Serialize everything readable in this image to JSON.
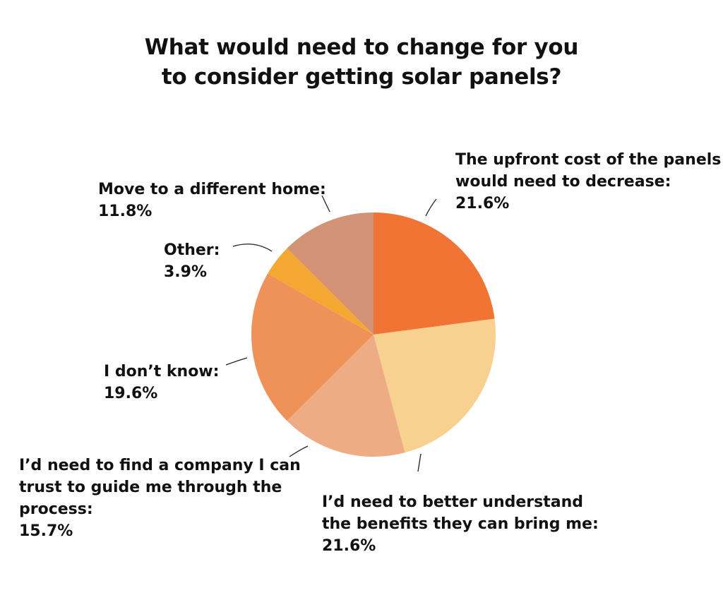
{
  "chart_data": {
    "type": "pie",
    "title_lines": [
      "What would need to change for you",
      "to consider getting solar panels?"
    ],
    "slices": [
      {
        "label_lines": [
          "The upfront cost of the panels",
          "would need to decrease:"
        ],
        "value_label": "21.6%",
        "value": 21.6,
        "color": "#F07535"
      },
      {
        "label_lines": [
          "I’d need to better understand",
          "the benefits they can bring me:"
        ],
        "value_label": "21.6%",
        "value": 21.6,
        "color": "#F8D190"
      },
      {
        "label_lines": [
          "I’d need to find a company I can",
          "trust to guide me through the",
          "process:"
        ],
        "value_label": "15.7%",
        "value": 15.7,
        "color": "#EEAC84"
      },
      {
        "label_lines": [
          "I don’t know:"
        ],
        "value_label": "19.6%",
        "value": 19.6,
        "color": "#EF925A"
      },
      {
        "label_lines": [
          "Other:"
        ],
        "value_label": "3.9%",
        "value": 3.9,
        "color": "#F4A832"
      },
      {
        "label_lines": [
          "Move to a different home:"
        ],
        "value_label": "11.8%",
        "value": 11.8,
        "color": "#D19275"
      }
    ]
  }
}
